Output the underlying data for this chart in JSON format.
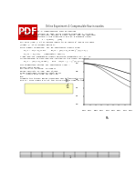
{
  "background_color": "#ffffff",
  "pdf_icon_color": "#cc0000",
  "pdf_icon_text": "PDF",
  "title_line": "Online Experiment 4: Compressible flow in nozzles",
  "page_number": "1"
}
